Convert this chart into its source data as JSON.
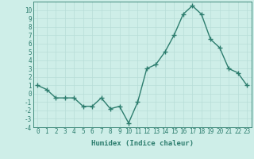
{
  "x": [
    0,
    1,
    2,
    3,
    4,
    5,
    6,
    7,
    8,
    9,
    10,
    11,
    12,
    13,
    14,
    15,
    16,
    17,
    18,
    19,
    20,
    21,
    22,
    23
  ],
  "y": [
    1.0,
    0.5,
    -0.5,
    -0.5,
    -0.5,
    -1.5,
    -1.5,
    -0.5,
    -1.8,
    -1.5,
    -3.5,
    -1.0,
    3.0,
    3.5,
    5.0,
    7.0,
    9.5,
    10.5,
    9.5,
    6.5,
    5.5,
    3.0,
    2.5,
    1.0
  ],
  "xlabel": "Humidex (Indice chaleur)",
  "ylim": [
    -4,
    11
  ],
  "xlim": [
    -0.5,
    23.5
  ],
  "yticks": [
    -4,
    -3,
    -2,
    -1,
    0,
    1,
    2,
    3,
    4,
    5,
    6,
    7,
    8,
    9,
    10
  ],
  "xticks": [
    0,
    1,
    2,
    3,
    4,
    5,
    6,
    7,
    8,
    9,
    10,
    11,
    12,
    13,
    14,
    15,
    16,
    17,
    18,
    19,
    20,
    21,
    22,
    23
  ],
  "line_color": "#2d7d6e",
  "marker": "+",
  "bg_color": "#ceeee8",
  "grid_color": "#b8ddd8",
  "axis_color": "#2d7d6e",
  "font_color": "#2d7d6e",
  "font_family": "monospace",
  "font_size": 5.5,
  "xlabel_fontsize": 6.5,
  "linewidth": 1.0,
  "markersize": 4,
  "markeredgewidth": 1.0
}
